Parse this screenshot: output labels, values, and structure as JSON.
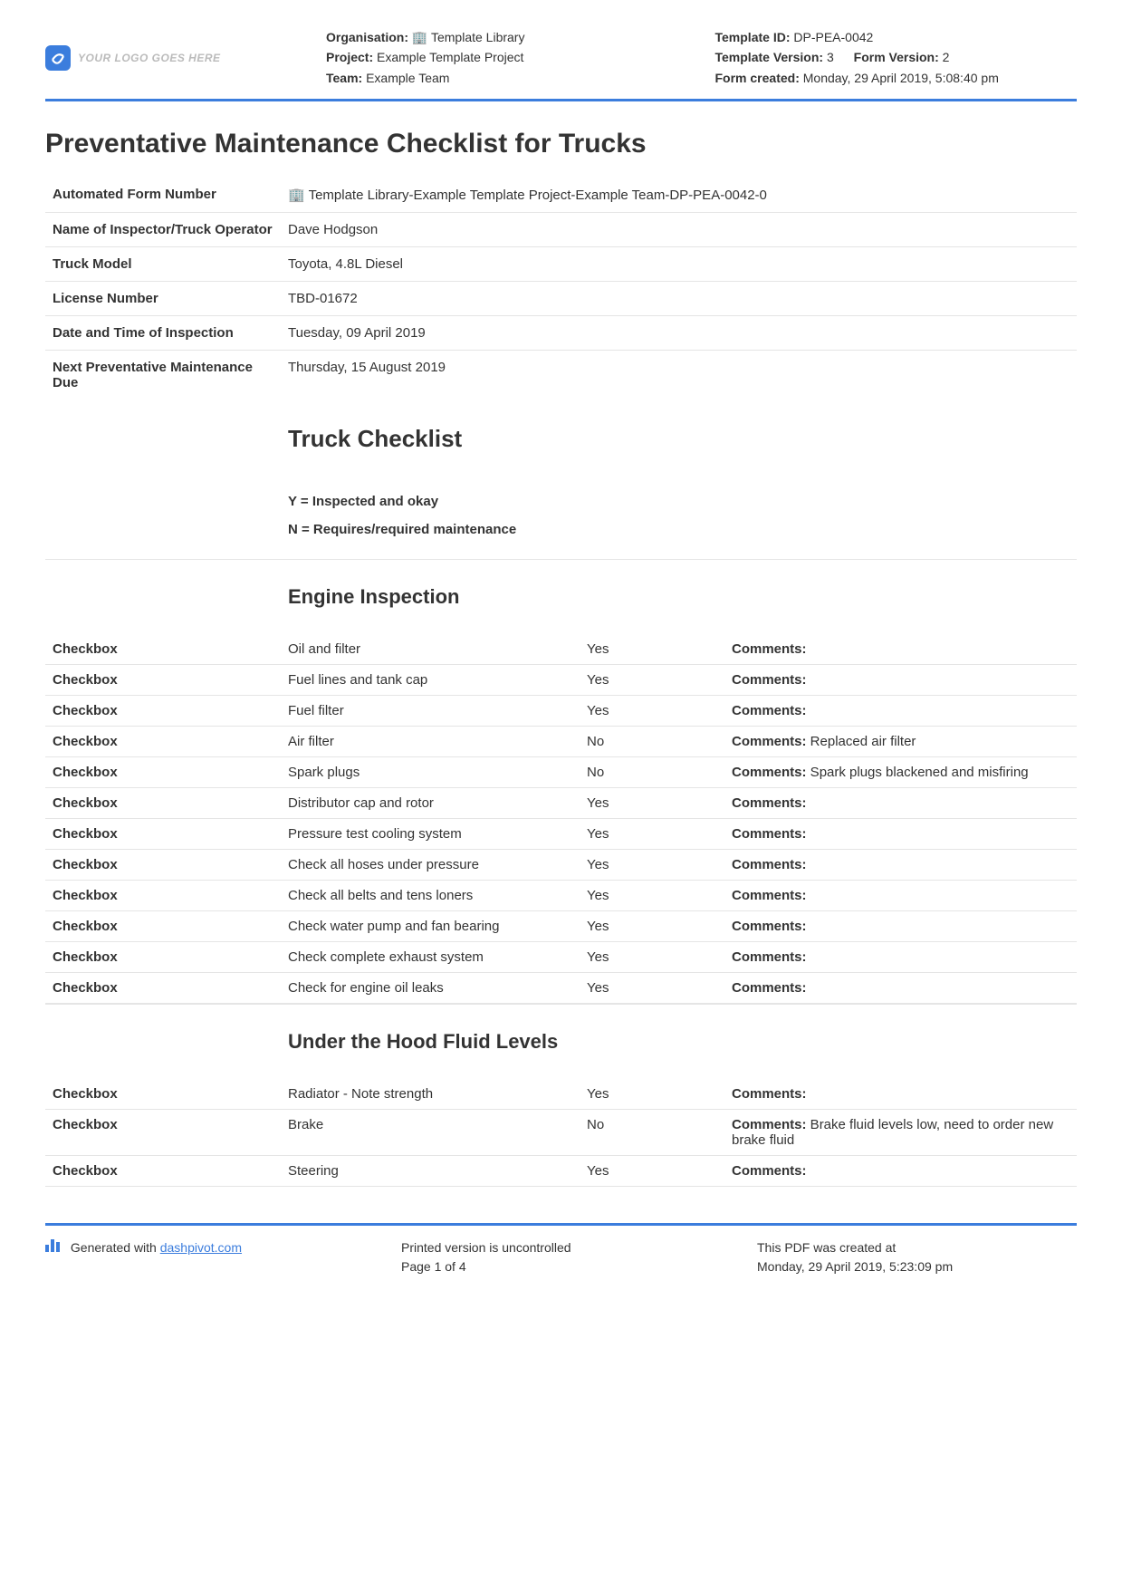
{
  "logo_placeholder": "YOUR LOGO GOES HERE",
  "header": {
    "left": {
      "org_label": "Organisation:",
      "org_value": "🏢 Template Library",
      "proj_label": "Project:",
      "proj_value": "Example Template Project",
      "team_label": "Team:",
      "team_value": "Example Team"
    },
    "right": {
      "tid_label": "Template ID:",
      "tid_value": "DP-PEA-0042",
      "tver_label": "Template Version:",
      "tver_value": "3",
      "fver_label": "Form Version:",
      "fver_value": "2",
      "created_label": "Form created:",
      "created_value": "Monday, 29 April 2019, 5:08:40 pm"
    }
  },
  "title": "Preventative Maintenance Checklist for Trucks",
  "info": [
    {
      "label": "Automated Form Number",
      "value": "🏢 Template Library-Example Template Project-Example Team-DP-PEA-0042-0"
    },
    {
      "label": "Name of Inspector/Truck Operator",
      "value": "Dave Hodgson"
    },
    {
      "label": "Truck Model",
      "value": "Toyota, 4.8L Diesel"
    },
    {
      "label": "License Number",
      "value": "TBD-01672"
    },
    {
      "label": "Date and Time of Inspection",
      "value": "Tuesday, 09 April 2019"
    },
    {
      "label": "Next Preventative Maintenance Due",
      "value": "Thursday, 15 August 2019"
    }
  ],
  "checklist_title": "Truck Checklist",
  "legend_y": "Y = Inspected and okay",
  "legend_n": "N = Requires/required maintenance",
  "checkbox_label": "Checkbox",
  "comments_label": "Comments:",
  "sections": [
    {
      "title": "Engine Inspection",
      "rows": [
        {
          "item": "Oil and filter",
          "yn": "Yes",
          "comment": ""
        },
        {
          "item": "Fuel lines and tank cap",
          "yn": "Yes",
          "comment": ""
        },
        {
          "item": "Fuel filter",
          "yn": "Yes",
          "comment": ""
        },
        {
          "item": "Air filter",
          "yn": "No",
          "comment": "Replaced air filter"
        },
        {
          "item": "Spark plugs",
          "yn": "No",
          "comment": "Spark plugs blackened and misfiring"
        },
        {
          "item": "Distributor cap and rotor",
          "yn": "Yes",
          "comment": ""
        },
        {
          "item": "Pressure test cooling system",
          "yn": "Yes",
          "comment": ""
        },
        {
          "item": "Check all hoses under pressure",
          "yn": "Yes",
          "comment": ""
        },
        {
          "item": "Check all belts and tens loners",
          "yn": "Yes",
          "comment": ""
        },
        {
          "item": "Check water pump and fan bearing",
          "yn": "Yes",
          "comment": ""
        },
        {
          "item": "Check complete exhaust system",
          "yn": "Yes",
          "comment": ""
        },
        {
          "item": "Check for engine oil leaks",
          "yn": "Yes",
          "comment": ""
        }
      ]
    },
    {
      "title": "Under the Hood Fluid Levels",
      "rows": [
        {
          "item": "Radiator - Note strength",
          "yn": "Yes",
          "comment": ""
        },
        {
          "item": "Brake",
          "yn": "No",
          "comment": "Brake fluid levels low, need to order new brake fluid"
        },
        {
          "item": "Steering",
          "yn": "Yes",
          "comment": ""
        }
      ]
    }
  ],
  "footer": {
    "generated_prefix": "Generated with ",
    "generated_link": "dashpivot.com",
    "uncontrolled": "Printed version is uncontrolled",
    "page": "Page 1 of 4",
    "created_label": "This PDF was created at",
    "created_value": "Monday, 29 April 2019, 5:23:09 pm"
  }
}
